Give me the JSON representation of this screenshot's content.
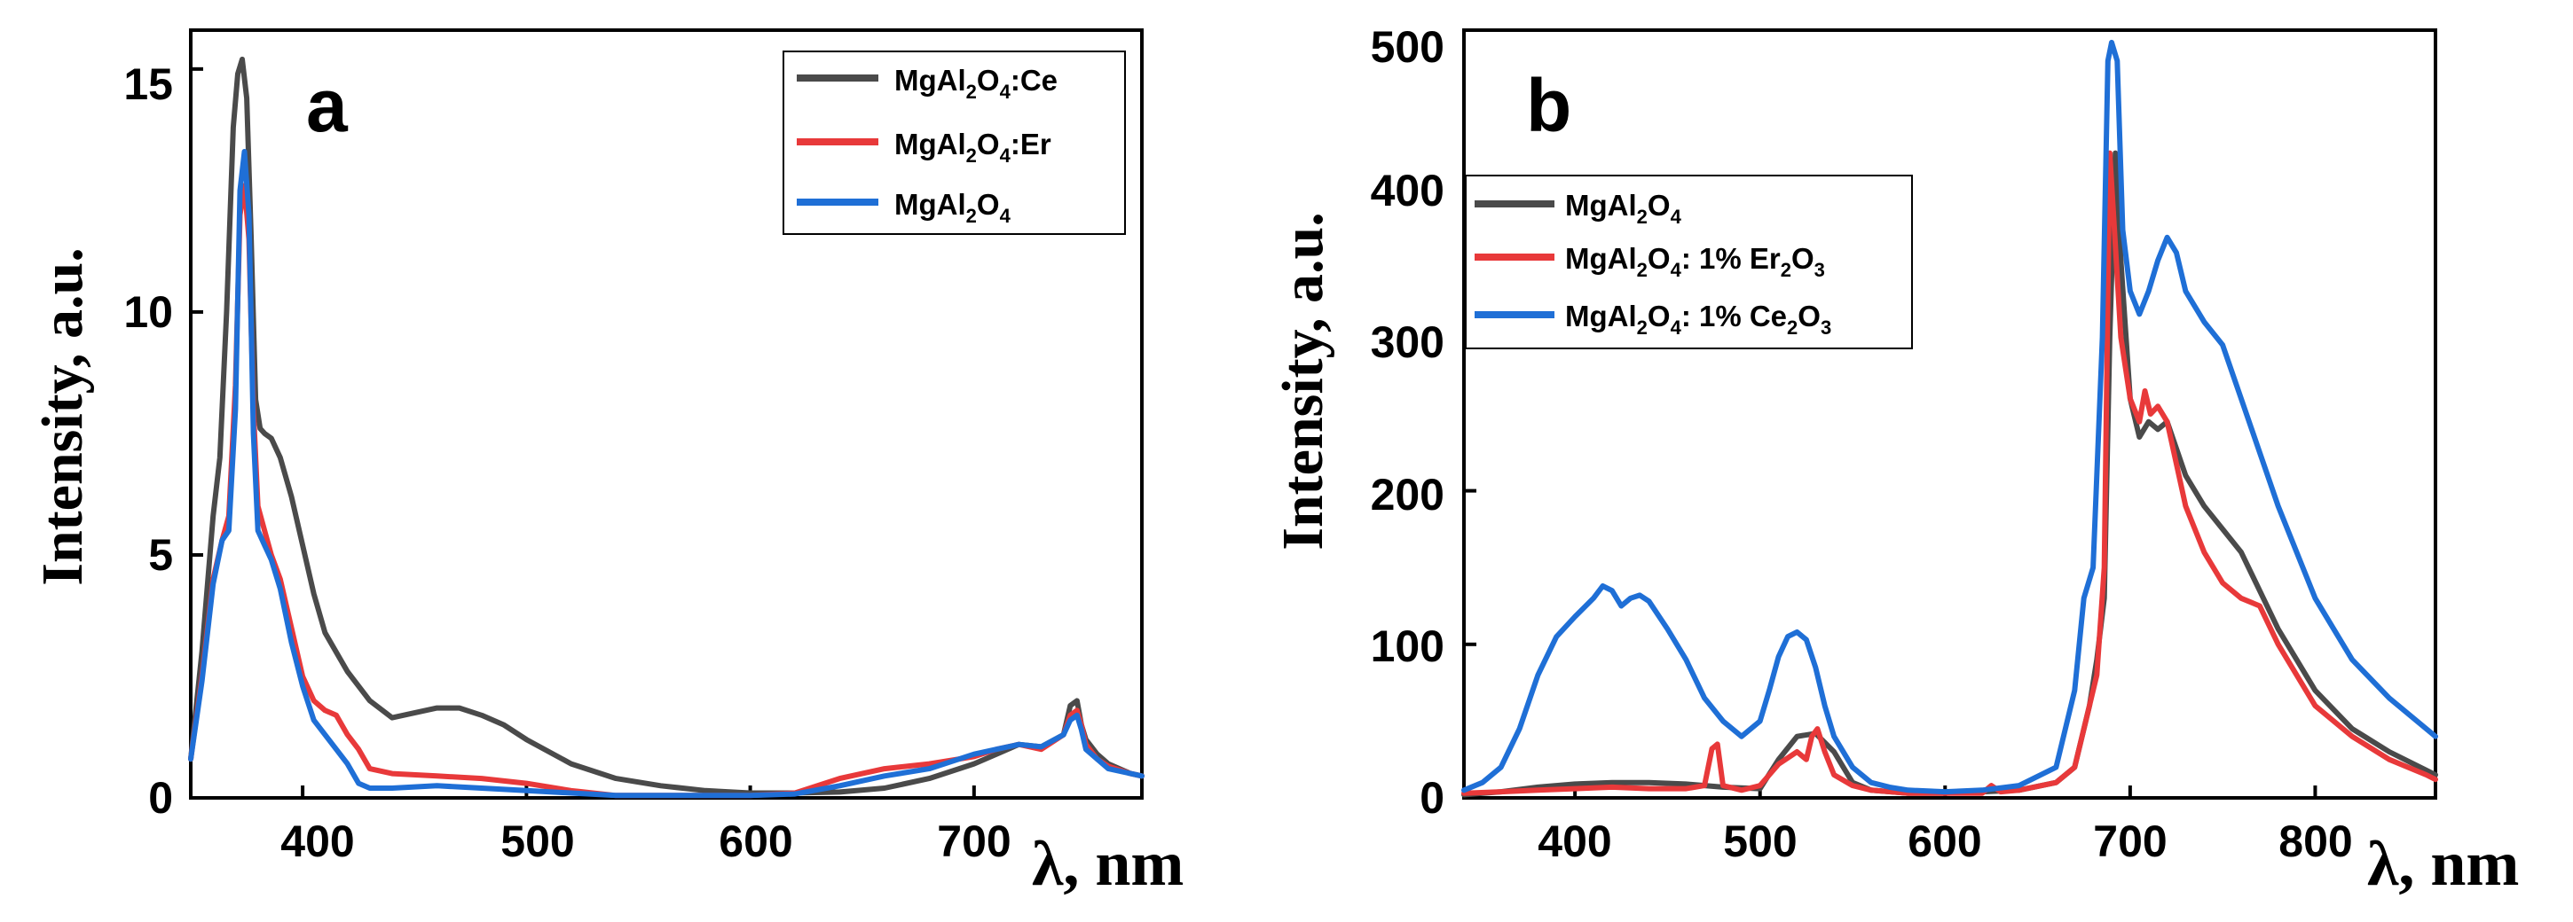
{
  "colors": {
    "black_series": "#4a4a4a",
    "red_series": "#e8393a",
    "blue_series": "#1f6fd6",
    "axis": "#000000"
  },
  "chart_data": [
    {
      "type": "line",
      "panel_label": "a",
      "xlabel": "λ, nm",
      "ylabel": "Intensity, a.u.",
      "xlim": [
        350,
        775
      ],
      "ylim": [
        0,
        15.8
      ],
      "xticks": [
        400,
        500,
        600,
        700
      ],
      "xtick_labels": [
        "400",
        "500",
        "600",
        "700"
      ],
      "yticks": [
        0,
        5,
        10,
        15
      ],
      "ytick_labels": [
        "0",
        "5",
        "10",
        "15"
      ],
      "legend_position": "top-right",
      "series": [
        {
          "name": "MgAl2O4:Ce",
          "legend": {
            "base": "MgAl",
            "sub1": "2",
            "mid": "O",
            "sub2": "4",
            "suffix": ":Ce"
          },
          "color": "#4a4a4a",
          "x": [
            350,
            355,
            360,
            363,
            366,
            369,
            371,
            373,
            375,
            377,
            379,
            381,
            383,
            386,
            390,
            395,
            400,
            405,
            410,
            420,
            430,
            440,
            450,
            460,
            470,
            480,
            490,
            500,
            520,
            540,
            560,
            580,
            600,
            620,
            640,
            660,
            680,
            700,
            710,
            720,
            730,
            740,
            743,
            746,
            748,
            750,
            755,
            760,
            770,
            775
          ],
          "y": [
            0.8,
            3.0,
            5.8,
            7.0,
            10.0,
            13.8,
            14.9,
            15.2,
            14.4,
            11.5,
            8.2,
            7.6,
            7.5,
            7.4,
            7.0,
            6.2,
            5.2,
            4.2,
            3.4,
            2.6,
            2.0,
            1.65,
            1.75,
            1.85,
            1.85,
            1.7,
            1.5,
            1.2,
            0.7,
            0.4,
            0.25,
            0.15,
            0.1,
            0.1,
            0.12,
            0.2,
            0.4,
            0.7,
            0.9,
            1.1,
            1.05,
            1.3,
            1.9,
            2.0,
            1.5,
            1.2,
            0.9,
            0.7,
            0.5,
            0.45
          ]
        },
        {
          "name": "MgAl2O4:Er",
          "legend": {
            "base": "MgAl",
            "sub1": "2",
            "mid": "O",
            "sub2": "4",
            "suffix": ":Er"
          },
          "color": "#e8393a",
          "x": [
            350,
            355,
            360,
            364,
            367,
            370,
            372,
            374,
            376,
            378,
            380,
            383,
            386,
            390,
            395,
            400,
            405,
            410,
            415,
            420,
            425,
            430,
            440,
            460,
            480,
            500,
            520,
            540,
            560,
            580,
            600,
            620,
            640,
            660,
            680,
            700,
            710,
            720,
            730,
            740,
            743,
            746,
            748,
            750,
            755,
            760,
            770,
            775
          ],
          "y": [
            0.8,
            2.5,
            4.5,
            5.3,
            5.8,
            8.5,
            12.0,
            12.6,
            11.5,
            8.0,
            6.0,
            5.5,
            5.0,
            4.5,
            3.5,
            2.5,
            2.0,
            1.8,
            1.7,
            1.3,
            1.0,
            0.6,
            0.5,
            0.45,
            0.4,
            0.3,
            0.15,
            0.05,
            0.05,
            0.05,
            0.05,
            0.1,
            0.4,
            0.6,
            0.7,
            0.85,
            1.0,
            1.1,
            1.0,
            1.3,
            1.7,
            1.8,
            1.5,
            1.1,
            0.8,
            0.65,
            0.5,
            0.45
          ]
        },
        {
          "name": "MgAl2O4",
          "legend": {
            "base": "MgAl",
            "sub1": "2",
            "mid": "O",
            "sub2": "4",
            "suffix": ""
          },
          "color": "#1f6fd6",
          "x": [
            350,
            355,
            360,
            364,
            367,
            370,
            372,
            374,
            376,
            378,
            380,
            383,
            386,
            390,
            395,
            400,
            405,
            410,
            415,
            420,
            425,
            430,
            440,
            460,
            480,
            500,
            520,
            540,
            560,
            580,
            600,
            620,
            640,
            660,
            680,
            700,
            710,
            720,
            730,
            740,
            743,
            746,
            748,
            750,
            755,
            760,
            770,
            775
          ],
          "y": [
            0.8,
            2.4,
            4.4,
            5.3,
            5.5,
            8.0,
            12.5,
            13.3,
            12.0,
            7.5,
            5.5,
            5.2,
            4.9,
            4.3,
            3.2,
            2.3,
            1.6,
            1.3,
            1.0,
            0.7,
            0.3,
            0.2,
            0.2,
            0.25,
            0.2,
            0.15,
            0.1,
            0.05,
            0.05,
            0.05,
            0.05,
            0.08,
            0.25,
            0.45,
            0.6,
            0.9,
            1.0,
            1.1,
            1.05,
            1.3,
            1.6,
            1.7,
            1.4,
            1.0,
            0.8,
            0.6,
            0.5,
            0.45
          ]
        }
      ]
    },
    {
      "type": "line",
      "panel_label": "b",
      "xlabel": "λ, nm",
      "ylabel": "Intensity, a.u.",
      "xlim": [
        340,
        865
      ],
      "ylim": [
        0,
        500
      ],
      "xticks": [
        400,
        500,
        600,
        700,
        800
      ],
      "xtick_labels": [
        "400",
        "500",
        "600",
        "700",
        "800"
      ],
      "yticks": [
        0,
        100,
        200,
        300,
        400,
        500
      ],
      "ytick_labels": [
        "0",
        "100",
        "200",
        "300",
        "400",
        "500"
      ],
      "legend_position": "upper-left",
      "series": [
        {
          "name": "MgAl2O4",
          "legend": {
            "base": "MgAl",
            "sub1": "2",
            "mid": "O",
            "sub2": "4",
            "tail": "",
            "sub3": "",
            "tail2": ""
          },
          "color": "#4a4a4a",
          "x": [
            340,
            360,
            380,
            400,
            420,
            440,
            460,
            480,
            500,
            510,
            520,
            530,
            540,
            550,
            560,
            580,
            600,
            620,
            640,
            660,
            670,
            678,
            682,
            686,
            689,
            692,
            695,
            700,
            705,
            710,
            715,
            720,
            730,
            740,
            760,
            780,
            800,
            820,
            840,
            860,
            865
          ],
          "y": [
            2,
            4,
            7,
            9,
            10,
            10,
            9,
            7,
            6,
            25,
            40,
            42,
            30,
            10,
            5,
            3,
            3,
            4,
            5,
            10,
            20,
            60,
            90,
            130,
            300,
            420,
            350,
            260,
            235,
            245,
            240,
            245,
            210,
            190,
            160,
            110,
            70,
            45,
            30,
            18,
            15
          ]
        },
        {
          "name": "MgAl2O4: 1% Er2O3",
          "legend": {
            "base": "MgAl",
            "sub1": "2",
            "mid": "O",
            "sub2": "4",
            "tail": ": 1% Er",
            "sub3": "2",
            "tail2": "O",
            "sub4": "3"
          },
          "color": "#e8393a",
          "x": [
            340,
            360,
            380,
            400,
            420,
            440,
            460,
            470,
            474,
            477,
            480,
            490,
            500,
            510,
            520,
            525,
            528,
            531,
            535,
            540,
            550,
            560,
            580,
            600,
            620,
            625,
            630,
            640,
            660,
            670,
            678,
            682,
            686,
            689,
            691,
            695,
            700,
            705,
            708,
            711,
            715,
            720,
            730,
            740,
            750,
            760,
            770,
            780,
            800,
            820,
            840,
            860,
            865
          ],
          "y": [
            3,
            4,
            5,
            6,
            7,
            6,
            6,
            8,
            32,
            35,
            8,
            5,
            8,
            22,
            30,
            25,
            40,
            45,
            30,
            15,
            8,
            5,
            3,
            3,
            3,
            8,
            4,
            5,
            10,
            20,
            60,
            80,
            150,
            420,
            380,
            300,
            260,
            245,
            265,
            250,
            255,
            245,
            190,
            160,
            140,
            130,
            125,
            100,
            60,
            40,
            25,
            15,
            12
          ]
        },
        {
          "name": "MgAl2O4: 1% Ce2O3",
          "legend": {
            "base": "MgAl",
            "sub1": "2",
            "mid": "O",
            "sub2": "4",
            "tail": ": 1% Ce",
            "sub3": "2",
            "tail2": "O",
            "sub4": "3"
          },
          "color": "#1f6fd6",
          "x": [
            340,
            350,
            360,
            370,
            380,
            390,
            400,
            410,
            415,
            420,
            425,
            430,
            435,
            440,
            450,
            460,
            470,
            480,
            490,
            500,
            505,
            510,
            515,
            520,
            525,
            530,
            535,
            540,
            550,
            560,
            570,
            580,
            600,
            620,
            640,
            660,
            670,
            675,
            680,
            685,
            688,
            690,
            693,
            696,
            700,
            705,
            710,
            715,
            720,
            725,
            730,
            740,
            750,
            760,
            780,
            800,
            820,
            840,
            860,
            865
          ],
          "y": [
            5,
            10,
            20,
            45,
            80,
            105,
            118,
            130,
            138,
            135,
            125,
            130,
            132,
            128,
            110,
            90,
            65,
            50,
            40,
            50,
            70,
            92,
            105,
            108,
            103,
            85,
            60,
            40,
            20,
            10,
            7,
            5,
            4,
            5,
            8,
            20,
            70,
            130,
            150,
            300,
            480,
            492,
            480,
            370,
            330,
            315,
            330,
            350,
            365,
            355,
            330,
            310,
            295,
            260,
            190,
            130,
            90,
            65,
            45,
            40
          ]
        }
      ]
    }
  ]
}
